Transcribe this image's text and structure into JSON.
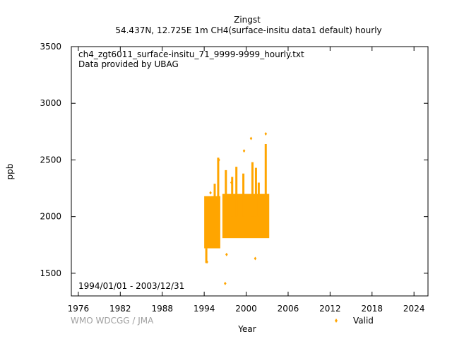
{
  "chart_data": {
    "type": "scatter",
    "title": "Zingst",
    "subtitle": "54.437N, 12.725E 1m    CH4(surface-insitu data1 default) hourly",
    "xlabel": "Year",
    "ylabel": "ppb",
    "xlim": [
      1975,
      2026
    ],
    "ylim": [
      1300,
      3500
    ],
    "x_ticks": [
      1976,
      1982,
      1988,
      1994,
      2000,
      2006,
      2012,
      2018,
      2024
    ],
    "y_ticks": [
      1500,
      2000,
      2500,
      3000,
      3500
    ],
    "grid": false,
    "legend_position": "bottom-right",
    "annotations": [
      "ch4_zgt6011_surface-insitu_71_9999-9999_hourly.txt",
      "Data provided by UBAG"
    ],
    "date_range": "1994/01/01 - 2003/12/31",
    "credit": "WMO WDCGG / JMA",
    "series": [
      {
        "name": "Valid",
        "color": "#ffa500",
        "segments": [
          {
            "x": [
              1994.0,
              1996.3
            ],
            "y": [
              1720,
              2180
            ]
          },
          {
            "x": [
              1996.6,
              2003.3
            ],
            "y": [
              1810,
              2200
            ]
          }
        ],
        "spikes": [
          {
            "x": 1995.5,
            "y": [
              1900,
              2290
            ]
          },
          {
            "x": 1996.0,
            "y": [
              1950,
              2520
            ]
          },
          {
            "x": 1997.1,
            "y": [
              2000,
              2410
            ]
          },
          {
            "x": 1998.0,
            "y": [
              2000,
              2350
            ]
          },
          {
            "x": 1998.6,
            "y": [
              2000,
              2440
            ]
          },
          {
            "x": 1999.6,
            "y": [
              2000,
              2380
            ]
          },
          {
            "x": 2000.9,
            "y": [
              2000,
              2480
            ]
          },
          {
            "x": 2001.4,
            "y": [
              2000,
              2430
            ]
          },
          {
            "x": 2001.8,
            "y": [
              2000,
              2300
            ]
          },
          {
            "x": 2002.8,
            "y": [
              2000,
              2640
            ]
          },
          {
            "x": 1994.3,
            "y": [
              1590,
              1720
            ]
          }
        ],
        "points": [
          {
            "x": 1994.9,
            "y": 2210
          },
          {
            "x": 1999.7,
            "y": 2580
          },
          {
            "x": 2000.7,
            "y": 2690
          },
          {
            "x": 2002.8,
            "y": 2730
          },
          {
            "x": 1996.1,
            "y": 2500
          },
          {
            "x": 1997.9,
            "y": 2300
          },
          {
            "x": 1997.2,
            "y": 1665
          },
          {
            "x": 2001.3,
            "y": 1630
          },
          {
            "x": 1997.0,
            "y": 1410
          },
          {
            "x": 1994.4,
            "y": 1600
          }
        ]
      }
    ]
  }
}
